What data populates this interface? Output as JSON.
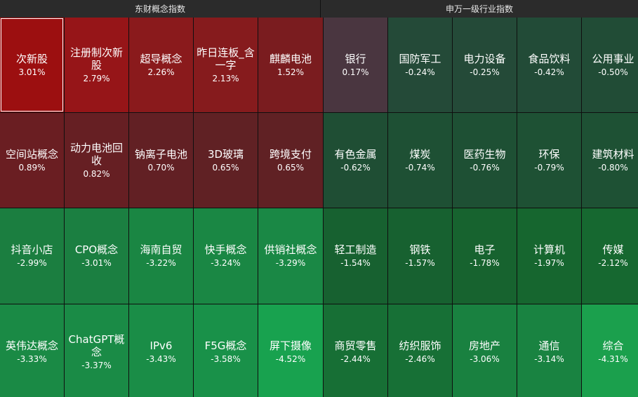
{
  "headers": {
    "left": "东财概念指数",
    "right": "申万一级行业指数"
  },
  "tiles": [
    {
      "name": "次新股",
      "pct": "3.01%",
      "color": "#9c0f10"
    },
    {
      "name": "注册制次新股",
      "pct": "2.79%",
      "color": "#961518"
    },
    {
      "name": "超导概念",
      "pct": "2.26%",
      "color": "#8a1a1c"
    },
    {
      "name": "昨日连板_含一字",
      "pct": "2.13%",
      "color": "#861b1d"
    },
    {
      "name": "麒麟电池",
      "pct": "1.52%",
      "color": "#7a1c1f"
    },
    {
      "name": "银行",
      "pct": "0.17%",
      "color": "#4a3640"
    },
    {
      "name": "国防军工",
      "pct": "-0.24%",
      "color": "#244a38"
    },
    {
      "name": "电力设备",
      "pct": "-0.25%",
      "color": "#244a38"
    },
    {
      "name": "食品饮料",
      "pct": "-0.42%",
      "color": "#224b37"
    },
    {
      "name": "公用事业",
      "pct": "-0.50%",
      "color": "#214c36"
    },
    {
      "name": "空间站概念",
      "pct": "0.89%",
      "color": "#6a1e22"
    },
    {
      "name": "动力电池回收",
      "pct": "0.82%",
      "color": "#661f23"
    },
    {
      "name": "钠离子电池",
      "pct": "0.70%",
      "color": "#622024"
    },
    {
      "name": "3D玻璃",
      "pct": "0.65%",
      "color": "#602124"
    },
    {
      "name": "跨境支付",
      "pct": "0.65%",
      "color": "#602124"
    },
    {
      "name": "有色金属",
      "pct": "-0.62%",
      "color": "#1f4e34"
    },
    {
      "name": "煤炭",
      "pct": "-0.74%",
      "color": "#1e5034"
    },
    {
      "name": "医药生物",
      "pct": "-0.76%",
      "color": "#1e5034"
    },
    {
      "name": "环保",
      "pct": "-0.79%",
      "color": "#1e5134"
    },
    {
      "name": "建筑材料",
      "pct": "-0.80%",
      "color": "#1e5134"
    },
    {
      "name": "抖音小店",
      "pct": "-2.99%",
      "color": "#1b7e40"
    },
    {
      "name": "CPO概念",
      "pct": "-3.01%",
      "color": "#1b7f41"
    },
    {
      "name": "海南自贸",
      "pct": "-3.22%",
      "color": "#1a8643"
    },
    {
      "name": "快手概念",
      "pct": "-3.24%",
      "color": "#1a8744"
    },
    {
      "name": "供销社概念",
      "pct": "-3.29%",
      "color": "#1a8845"
    },
    {
      "name": "轻工制造",
      "pct": "-1.54%",
      "color": "#176130"
    },
    {
      "name": "钢铁",
      "pct": "-1.57%",
      "color": "#176130"
    },
    {
      "name": "电子",
      "pct": "-1.78%",
      "color": "#17632f"
    },
    {
      "name": "计算机",
      "pct": "-1.97%",
      "color": "#16662f"
    },
    {
      "name": "传媒",
      "pct": "-2.12%",
      "color": "#166830"
    },
    {
      "name": "英伟达概念",
      "pct": "-3.33%",
      "color": "#1a8a45"
    },
    {
      "name": "ChatGPT概念",
      "pct": "-3.37%",
      "color": "#1a8b46"
    },
    {
      "name": "IPv6",
      "pct": "-3.43%",
      "color": "#1a8d47"
    },
    {
      "name": "F5G概念",
      "pct": "-3.58%",
      "color": "#199149"
    },
    {
      "name": "屏下摄像",
      "pct": "-4.52%",
      "color": "#18a24f"
    },
    {
      "name": "商贸零售",
      "pct": "-2.44%",
      "color": "#176f35"
    },
    {
      "name": "纺织服饰",
      "pct": "-2.46%",
      "color": "#177036"
    },
    {
      "name": "房地产",
      "pct": "-3.06%",
      "color": "#198140"
    },
    {
      "name": "通信",
      "pct": "-3.14%",
      "color": "#198341"
    },
    {
      "name": "综合",
      "pct": "-4.31%",
      "color": "#1ba04d"
    }
  ]
}
